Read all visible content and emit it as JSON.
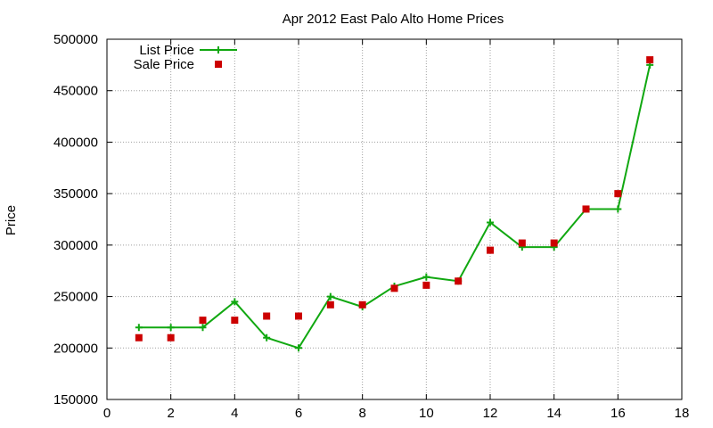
{
  "chart_data": {
    "type": "line",
    "title": "Apr 2012 East Palo Alto Home Prices",
    "xlabel": "",
    "ylabel": "Price",
    "xlim": [
      0,
      18
    ],
    "ylim": [
      150000,
      500000
    ],
    "x_ticks": [
      0,
      2,
      4,
      6,
      8,
      10,
      12,
      14,
      16,
      18
    ],
    "y_ticks": [
      150000,
      200000,
      250000,
      300000,
      350000,
      400000,
      450000,
      500000
    ],
    "grid": true,
    "legend_position": "top-left",
    "series": [
      {
        "name": "List Price",
        "style": "line-with-plus-markers",
        "color": "#11a811",
        "x": [
          1,
          2,
          3,
          4,
          5,
          6,
          7,
          8,
          9,
          10,
          11,
          12,
          13,
          14,
          15,
          16,
          17
        ],
        "values": [
          220000,
          220000,
          220000,
          245000,
          210000,
          200000,
          250000,
          240000,
          260000,
          269000,
          265000,
          322000,
          298000,
          298000,
          335000,
          335000,
          475000
        ]
      },
      {
        "name": "Sale Price",
        "style": "square-markers",
        "color": "#cc0000",
        "x": [
          1,
          2,
          3,
          4,
          5,
          6,
          7,
          8,
          9,
          10,
          11,
          12,
          13,
          14,
          15,
          16,
          17
        ],
        "values": [
          210000,
          210000,
          227000,
          227000,
          231000,
          231000,
          242000,
          242000,
          258000,
          261000,
          265000,
          295000,
          302000,
          302000,
          335000,
          350000,
          480000
        ]
      }
    ]
  }
}
